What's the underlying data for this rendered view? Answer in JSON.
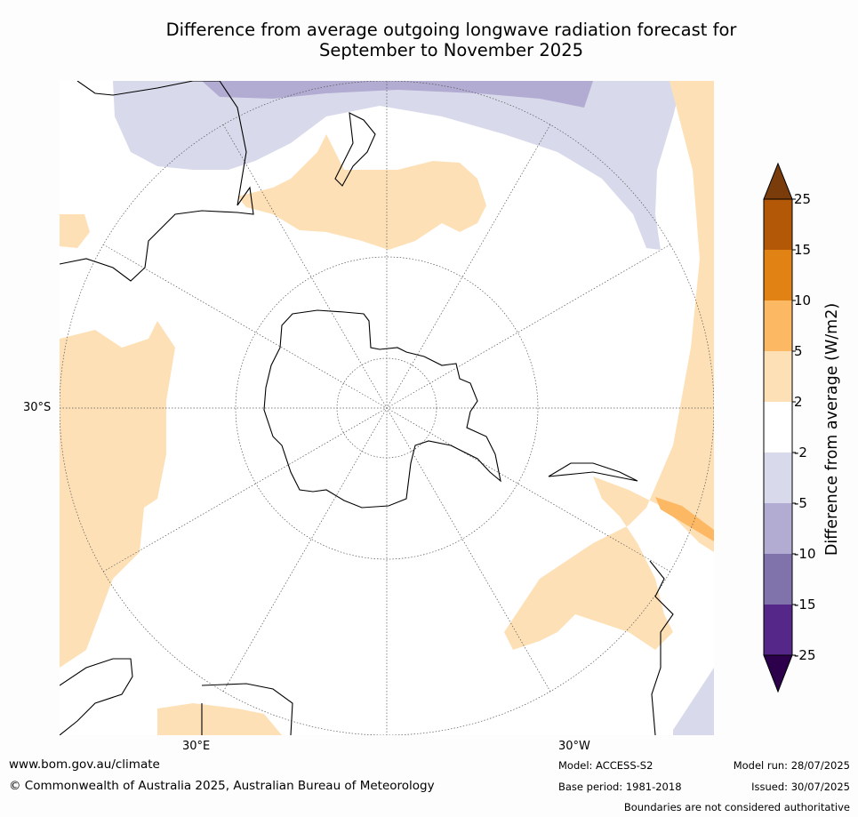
{
  "title_line1": "Difference from average outgoing longwave radiation forecast for",
  "title_line2": "September to November 2025",
  "lat_label": "30°S",
  "lon_labels": {
    "east": "30°E",
    "west": "30°W"
  },
  "colorbar": {
    "title": "Difference from average (W/m2)",
    "ticks": [
      "25",
      "15",
      "10",
      "5",
      "2",
      "-2",
      "-5",
      "-10",
      "-15",
      "-25"
    ],
    "colors": {
      "above_25": "#7a3c0b",
      "15_25": "#b35806",
      "10_15": "#e08214",
      "5_10": "#fdb863",
      "2_5": "#fee0b6",
      "neutral": "#ffffff",
      "m2_m5": "#d8daeb",
      "m5_m10": "#b2abd2",
      "m10_m15": "#8073ac",
      "m15_m25": "#542788",
      "below_m25": "#2d004b"
    }
  },
  "footer": {
    "website": "www.bom.gov.au/climate",
    "copyright": "© Commonwealth of Australia 2025, Australian Bureau of Meteorology",
    "model": "Model: ACCESS-S2",
    "base_period": "Base period: 1981-2018",
    "model_run": "Model run: 28/07/2025",
    "issued": "Issued: 30/07/2025",
    "disclaimer": "Boundaries are not considered authoritative"
  }
}
